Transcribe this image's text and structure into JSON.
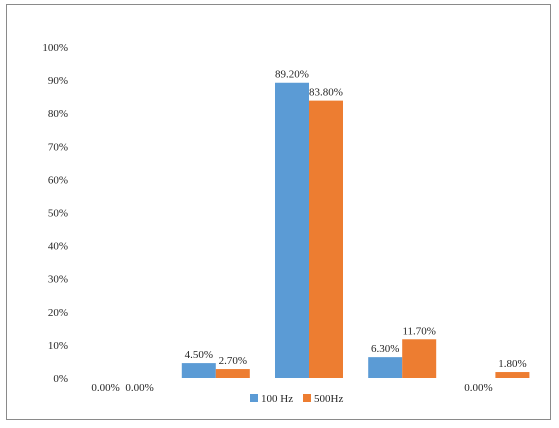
{
  "chart_data": {
    "type": "bar",
    "categories": [
      "",
      "",
      "",
      "",
      ""
    ],
    "series": [
      {
        "name": "100 Hz",
        "color": "#5b9bd5",
        "values": [
          0.0,
          4.5,
          89.2,
          6.3,
          0.0
        ],
        "labels": [
          "0.00%",
          "4.50%",
          "89.20%",
          "6.30%",
          "0.00%"
        ]
      },
      {
        "name": "500Hz",
        "color": "#ed7d31",
        "values": [
          0.0,
          2.7,
          83.8,
          11.7,
          1.8
        ],
        "labels": [
          "0.00%",
          "2.70%",
          "83.80%",
          "11.70%",
          "1.80%"
        ]
      }
    ],
    "ylim": [
      0,
      100
    ],
    "yticks": [
      "0%",
      "10%",
      "20%",
      "30%",
      "40%",
      "50%",
      "60%",
      "70%",
      "80%",
      "90%",
      "100%"
    ],
    "grid": false,
    "legend": "bottom",
    "title": "",
    "xlabel": "",
    "ylabel": ""
  }
}
